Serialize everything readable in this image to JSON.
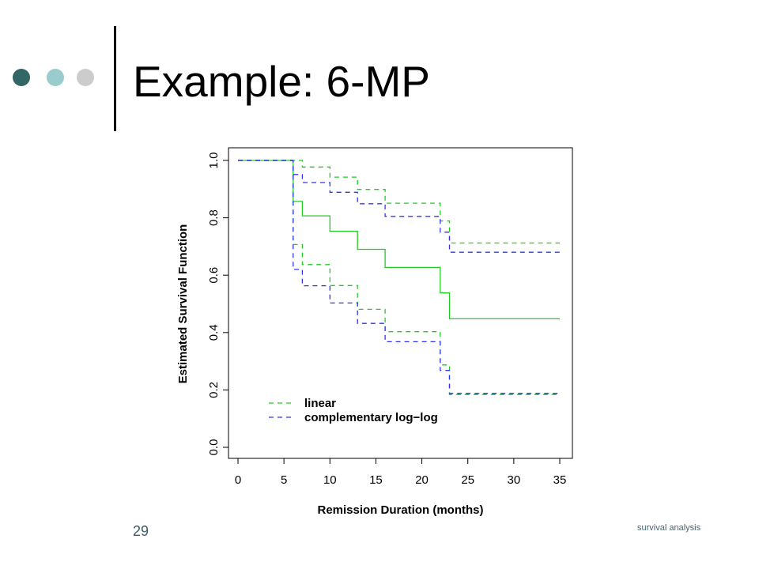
{
  "slide": {
    "title": "Example: 6-MP",
    "page_number": "29",
    "footer": "survival analysis"
  },
  "colors": {
    "bullet_dark": "#336666",
    "bullet_light": "#99cccc",
    "bullet_gray": "#cccccc"
  },
  "chart_data": {
    "type": "line",
    "line_shape": "step",
    "xlabel": "Remission Duration (months)",
    "ylabel": "Estimated Survival Function",
    "xlim": [
      0,
      35
    ],
    "ylim": [
      0,
      1
    ],
    "x_ticks": [
      "0",
      "5",
      "10",
      "15",
      "20",
      "25",
      "30",
      "35"
    ],
    "y_ticks": [
      "0.0",
      "0.2",
      "0.4",
      "0.6",
      "0.8",
      "1.0"
    ],
    "grid": false,
    "legend": {
      "position": "bottom-left"
    },
    "series": [
      {
        "style": "solid",
        "color": "#22cc22",
        "x": [
          0,
          6,
          7,
          10,
          13,
          16,
          22,
          23,
          35
        ],
        "y": [
          1.0,
          0.857,
          0.807,
          0.753,
          0.69,
          0.627,
          0.538,
          0.448,
          0.448
        ]
      },
      {
        "name": "linear",
        "style": "dashed",
        "color": "#22cc22",
        "x": [
          0,
          6,
          7,
          10,
          13,
          16,
          22,
          23,
          35
        ],
        "upper": [
          1.0,
          1.0,
          0.977,
          0.942,
          0.899,
          0.851,
          0.789,
          0.712,
          0.712
        ],
        "lower": [
          1.0,
          0.707,
          0.637,
          0.564,
          0.481,
          0.403,
          0.287,
          0.184,
          0.184
        ]
      },
      {
        "name": "complementary log−log",
        "style": "dashed",
        "color": "#3333ee",
        "x": [
          0,
          6,
          7,
          10,
          13,
          16,
          22,
          23,
          35
        ],
        "upper": [
          1.0,
          0.951,
          0.923,
          0.889,
          0.849,
          0.805,
          0.75,
          0.68,
          0.68
        ],
        "lower": [
          1.0,
          0.62,
          0.563,
          0.503,
          0.432,
          0.368,
          0.268,
          0.188,
          0.188
        ]
      }
    ]
  }
}
